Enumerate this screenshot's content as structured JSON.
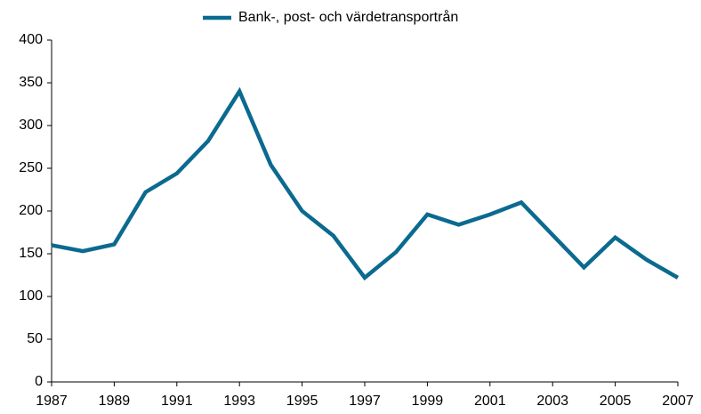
{
  "chart_data": {
    "type": "line",
    "x": [
      1987,
      1988,
      1989,
      1990,
      1991,
      1992,
      1993,
      1994,
      1995,
      1996,
      1997,
      1998,
      1999,
      2000,
      2001,
      2002,
      2003,
      2004,
      2005,
      2006,
      2007
    ],
    "series": [
      {
        "name": "Bank-, post- och värdetransportrån",
        "color": "#0b6a8f",
        "values": [
          160,
          153,
          161,
          222,
          244,
          282,
          340,
          254,
          200,
          171,
          122,
          152,
          196,
          184,
          196,
          210,
          172,
          134,
          169,
          143,
          122
        ]
      }
    ],
    "xlim": [
      1987,
      2007
    ],
    "xticks": [
      1987,
      1989,
      1991,
      1993,
      1995,
      1997,
      1999,
      2001,
      2003,
      2005,
      2007
    ],
    "ylim": [
      0,
      400
    ],
    "yticks": [
      0,
      50,
      100,
      150,
      200,
      250,
      300,
      350,
      400
    ],
    "grid": false,
    "legend": "top"
  }
}
